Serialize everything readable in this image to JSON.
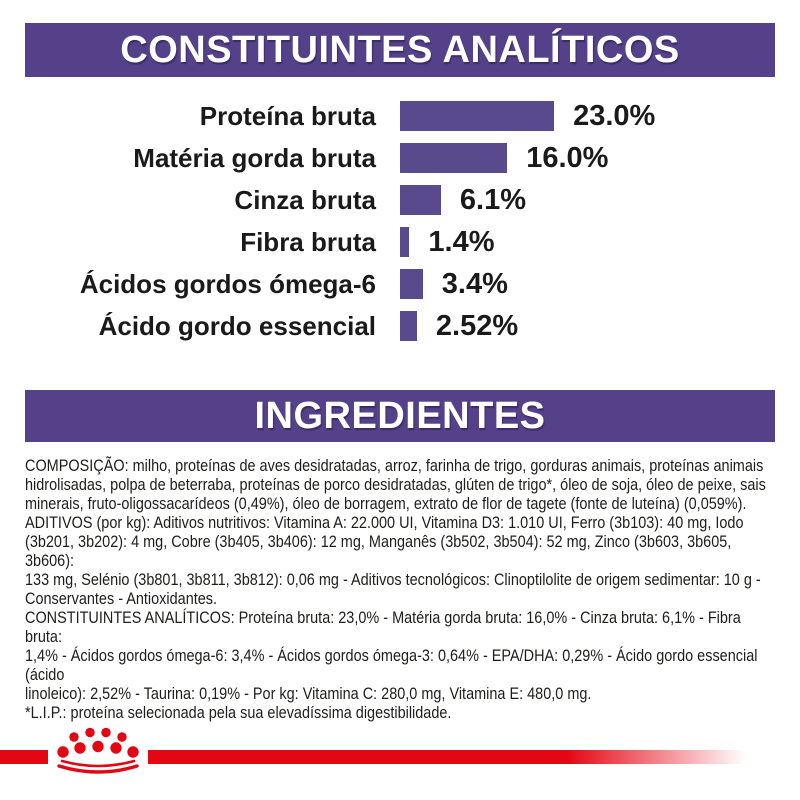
{
  "colors": {
    "purple_header": "#54418a",
    "purple_bar": "#584a8c",
    "text": "#1d1d1b",
    "red": "#e30613",
    "background": "#ffffff"
  },
  "header1": {
    "title": "CONSTITUINTES ANALÍTICOS"
  },
  "chart_data": {
    "type": "bar",
    "orientation": "horizontal",
    "title": "CONSTITUINTES ANALÍTICOS",
    "unit": "%",
    "categories": [
      "Proteína bruta",
      "Matéria gorda bruta",
      "Cinza bruta",
      "Fibra bruta",
      "Ácidos gordos ómega-6",
      "Ácido gordo essencial"
    ],
    "values": [
      23.0,
      16.0,
      6.1,
      1.4,
      3.4,
      2.52
    ],
    "value_labels": [
      "23.0%",
      "16.0%",
      "6.1%",
      "1.4%",
      "3.4%",
      "2.52%"
    ],
    "xlim": [
      0,
      23
    ],
    "bar_color": "#584a8c",
    "grid": false,
    "legend": false
  },
  "ingredients": {
    "heading": "INGREDIENTES",
    "composition_lines": [
      "COMPOSIÇÃO: milho, proteínas de aves desidratadas, arroz, farinha de trigo, gorduras animais, proteínas animais",
      "hidrolisadas, polpa de beterraba, proteínas de porco desidratadas, glúten de trigo*, óleo de soja, óleo de peixe, sais",
      "minerais, fruto-oligossacarídeos (0,49%), óleo de borragem, extrato de flor de tagete (fonte de luteína) (0,059%)."
    ],
    "additives_lines": [
      "ADITIVOS (por kg): Aditivos nutritivos: Vitamina A: 22.000 UI, Vitamina D3: 1.010 UI, Ferro (3b103): 40 mg, Iodo",
      "(3b201, 3b202): 4 mg, Cobre (3b405, 3b406): 12 mg, Manganês (3b502, 3b504): 52 mg, Zinco (3b603, 3b605, 3b606):",
      "133 mg, Selénio (3b801, 3b811, 3b812): 0,06 mg - Aditivos tecnológicos: Clinoptilolite de origem sedimentar: 10 g -",
      "Conservantes - Antioxidantes."
    ],
    "analytical_lines": [
      "CONSTITUINTES ANALÍTICOS: Proteína bruta: 23,0% - Matéria gorda bruta: 16,0% - Cinza bruta: 6,1% - Fibra bruta:",
      "1,4% - Ácidos gordos ómega-6: 3,4% - Ácidos gordos ómega-3: 0,64% - EPA/DHA: 0,29% - Ácido gordo essencial (ácido",
      "linoleico): 2,52% - Taurina: 0,19% - Por kg: Vitamina C: 280,0 mg, Vitamina E: 480,0 mg."
    ],
    "lip_note": "*L.I.P.: proteína selecionada pela sua elevadíssima digestibilidade."
  },
  "footer": {
    "logo": "royal-canin-crown"
  }
}
